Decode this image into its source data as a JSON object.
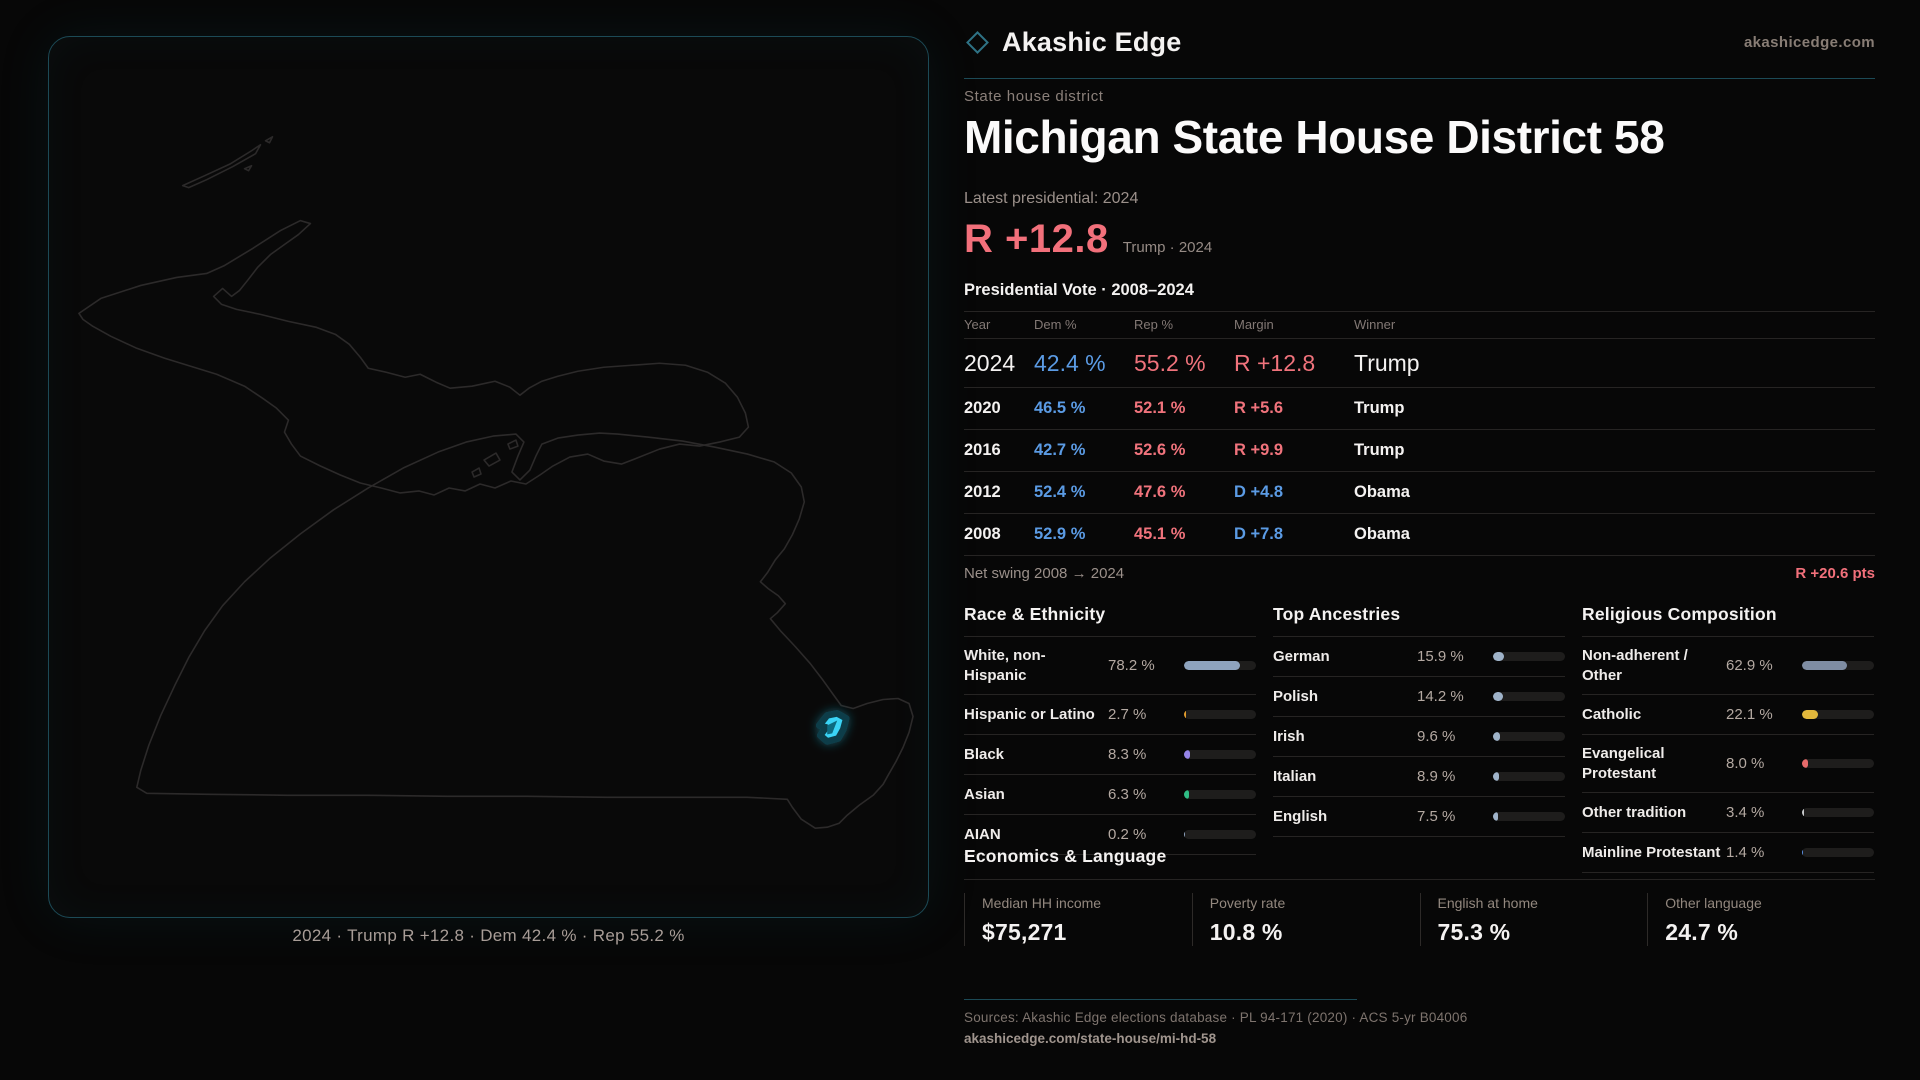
{
  "brand": {
    "name": "Akashic Edge",
    "domain": "akashicedge.com"
  },
  "page": {
    "kicker": "State house district",
    "title": "Michigan State House District 58",
    "latest_label": "Latest presidential: 2024",
    "headline_margin": "R +12.8",
    "headline_context": "Trump · 2024"
  },
  "map": {
    "caption": "2024 · Trump R +12.8 · Dem 42.4 % · Rep 55.2 %",
    "highlight_color": "#38d2f5"
  },
  "vote_table": {
    "title": "Presidential Vote · 2008–2024",
    "columns": [
      "Year",
      "Dem %",
      "Rep %",
      "Margin",
      "Winner"
    ],
    "rows": [
      {
        "year": "2024",
        "dem": "42.4 %",
        "rep": "55.2 %",
        "margin": "R +12.8",
        "winner": "Trump",
        "party": "R"
      },
      {
        "year": "2020",
        "dem": "46.5 %",
        "rep": "52.1 %",
        "margin": "R +5.6",
        "winner": "Trump",
        "party": "R"
      },
      {
        "year": "2016",
        "dem": "42.7 %",
        "rep": "52.6 %",
        "margin": "R +9.9",
        "winner": "Trump",
        "party": "R"
      },
      {
        "year": "2012",
        "dem": "52.4 %",
        "rep": "47.6 %",
        "margin": "D +4.8",
        "winner": "Obama",
        "party": "D"
      },
      {
        "year": "2008",
        "dem": "52.9 %",
        "rep": "45.1 %",
        "margin": "D +7.8",
        "winner": "Obama",
        "party": "D"
      }
    ],
    "net_swing_label": "Net swing 2008 → 2024",
    "net_swing_value": "R +20.6 pts"
  },
  "demographics": [
    {
      "title": "Race & Ethnicity",
      "rows": [
        {
          "label": "White, non-Hispanic",
          "value": "78.2 %",
          "pct": 78.2,
          "color": "#8ea3be"
        },
        {
          "label": "Hispanic or Latino",
          "value": "2.7 %",
          "pct": 2.7,
          "color": "#e09b2d"
        },
        {
          "label": "Black",
          "value": "8.3 %",
          "pct": 8.3,
          "color": "#9483e6"
        },
        {
          "label": "Asian",
          "value": "6.3 %",
          "pct": 6.3,
          "color": "#2fbd85"
        },
        {
          "label": "AIAN",
          "value": "0.2 %",
          "pct": 0.2,
          "color": "#8ea3be"
        }
      ]
    },
    {
      "title": "Top Ancestries",
      "rows": [
        {
          "label": "German",
          "value": "15.9 %",
          "pct": 15.9,
          "color": "#9fb3c9"
        },
        {
          "label": "Polish",
          "value": "14.2 %",
          "pct": 14.2,
          "color": "#9fb3c9"
        },
        {
          "label": "Irish",
          "value": "9.6 %",
          "pct": 9.6,
          "color": "#9fb3c9"
        },
        {
          "label": "Italian",
          "value": "8.9 %",
          "pct": 8.9,
          "color": "#9fb3c9"
        },
        {
          "label": "English",
          "value": "7.5 %",
          "pct": 7.5,
          "color": "#9fb3c9"
        }
      ]
    },
    {
      "title": "Religious Composition",
      "rows": [
        {
          "label": "Non-adherent / Other",
          "value": "62.9 %",
          "pct": 62.9,
          "color": "#7f8da3"
        },
        {
          "label": "Catholic",
          "value": "22.1 %",
          "pct": 22.1,
          "color": "#e2b83c"
        },
        {
          "label": "Evangelical Protestant",
          "value": "8.0 %",
          "pct": 8.0,
          "color": "#e66a6a"
        },
        {
          "label": "Other tradition",
          "value": "3.4 %",
          "pct": 3.4,
          "color": "#c8cacc"
        },
        {
          "label": "Mainline Protestant",
          "value": "1.4 %",
          "pct": 1.4,
          "color": "#5a8fe0"
        }
      ]
    }
  ],
  "economics": {
    "title": "Economics & Language",
    "stats": [
      {
        "label": "Median HH income",
        "value": "$75,271"
      },
      {
        "label": "Poverty rate",
        "value": "10.8 %"
      },
      {
        "label": "English at home",
        "value": "75.3 %"
      },
      {
        "label": "Other language",
        "value": "24.7 %"
      }
    ]
  },
  "footer": {
    "sources": "Sources: Akashic Edge elections database · PL 94-171 (2020) · ACS 5-yr B04006",
    "permalink": "akashicedge.com/state-house/mi-hd-58"
  },
  "colors": {
    "dem_blue": "#5b9be4",
    "rep_red": "#f0737c",
    "accent_teal": "#1c4a56",
    "district_cyan": "#38d2f5"
  }
}
